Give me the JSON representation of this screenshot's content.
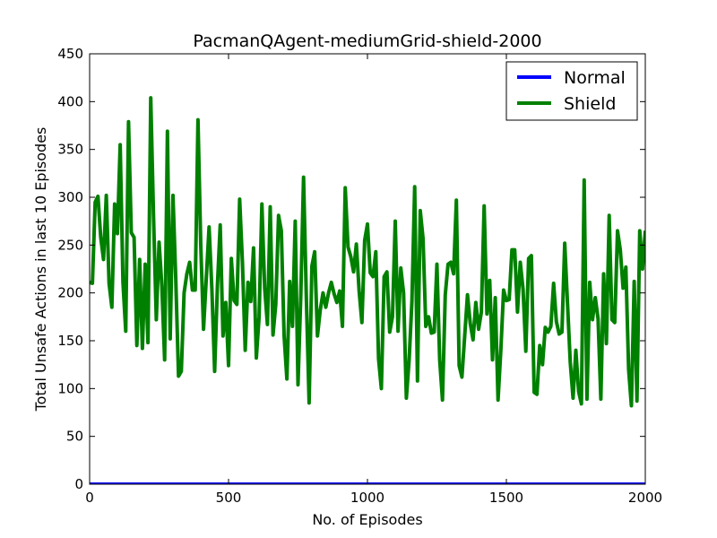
{
  "chart_data": {
    "type": "line",
    "title": "PacmanQAgent-mediumGrid-shield-2000",
    "xlabel": "No. of Episodes",
    "ylabel": "Total Unsafe Actions in last 10 Episodes",
    "xlim": [
      0,
      2000
    ],
    "ylim": [
      0,
      450
    ],
    "xticks": [
      0,
      500,
      1000,
      1500,
      2000
    ],
    "yticks": [
      0,
      50,
      100,
      150,
      200,
      250,
      300,
      350,
      400,
      450
    ],
    "grid": false,
    "legend_position": "top-right",
    "series": [
      {
        "name": "Normal",
        "color": "#0000ff",
        "x": [
          0,
          2000
        ],
        "y": [
          0,
          0
        ]
      },
      {
        "name": "Shield",
        "color": "#008000",
        "x": [
          0,
          10,
          20,
          30,
          40,
          50,
          60,
          70,
          80,
          90,
          100,
          110,
          120,
          130,
          140,
          150,
          160,
          170,
          180,
          190,
          200,
          210,
          220,
          230,
          240,
          250,
          260,
          270,
          280,
          290,
          300,
          310,
          320,
          330,
          340,
          350,
          360,
          370,
          380,
          390,
          400,
          410,
          420,
          430,
          440,
          450,
          460,
          470,
          480,
          490,
          500,
          510,
          520,
          530,
          540,
          550,
          560,
          570,
          580,
          590,
          600,
          610,
          620,
          630,
          640,
          650,
          660,
          670,
          680,
          690,
          700,
          710,
          720,
          730,
          740,
          750,
          760,
          770,
          780,
          790,
          800,
          810,
          820,
          830,
          840,
          850,
          860,
          870,
          880,
          890,
          900,
          910,
          920,
          930,
          940,
          950,
          960,
          970,
          980,
          990,
          1000,
          1010,
          1020,
          1030,
          1040,
          1050,
          1060,
          1070,
          1080,
          1090,
          1100,
          1110,
          1120,
          1130,
          1140,
          1150,
          1160,
          1170,
          1180,
          1190,
          1200,
          1210,
          1220,
          1230,
          1240,
          1250,
          1260,
          1270,
          1280,
          1290,
          1300,
          1310,
          1320,
          1330,
          1340,
          1350,
          1360,
          1370,
          1380,
          1390,
          1400,
          1410,
          1420,
          1430,
          1440,
          1450,
          1460,
          1470,
          1480,
          1490,
          1500,
          1510,
          1520,
          1530,
          1540,
          1550,
          1560,
          1570,
          1580,
          1590,
          1600,
          1610,
          1620,
          1630,
          1640,
          1650,
          1660,
          1670,
          1680,
          1690,
          1700,
          1710,
          1720,
          1730,
          1740,
          1750,
          1760,
          1770,
          1780,
          1790,
          1800,
          1810,
          1820,
          1830,
          1840,
          1850,
          1860,
          1870,
          1880,
          1890,
          1900,
          1910,
          1920,
          1930,
          1940,
          1950,
          1960,
          1970,
          1980,
          1990,
          2000
        ],
        "y": [
          211,
          210,
          295,
          301,
          258,
          235,
          302,
          210,
          185,
          293,
          262,
          355,
          211,
          160,
          379,
          263,
          258,
          145,
          235,
          142,
          230,
          148,
          404,
          280,
          172,
          253,
          207,
          130,
          369,
          152,
          302,
          215,
          113,
          118,
          200,
          220,
          232,
          203,
          203,
          381,
          250,
          162,
          216,
          269,
          204,
          118,
          208,
          271,
          155,
          190,
          124,
          236,
          192,
          188,
          298,
          232,
          140,
          211,
          191,
          247,
          132,
          175,
          293,
          205,
          167,
          290,
          156,
          188,
          281,
          265,
          155,
          110,
          212,
          165,
          275,
          104,
          197,
          321,
          195,
          85,
          228,
          243,
          155,
          182,
          200,
          185,
          200,
          211,
          199,
          190,
          202,
          165,
          310,
          248,
          238,
          222,
          251,
          202,
          169,
          255,
          272,
          221,
          217,
          243,
          131,
          100,
          217,
          222,
          159,
          175,
          275,
          160,
          226,
          200,
          90,
          130,
          191,
          311,
          108,
          286,
          257,
          165,
          175,
          158,
          159,
          230,
          130,
          88,
          198,
          230,
          232,
          220,
          297,
          124,
          112,
          155,
          198,
          168,
          151,
          190,
          162,
          180,
          291,
          178,
          213,
          130,
          195,
          88,
          140,
          203,
          192,
          193,
          245,
          245,
          180,
          232,
          204,
          139,
          236,
          239,
          96,
          94,
          145,
          125,
          164,
          159,
          165,
          210,
          170,
          157,
          159,
          252,
          189,
          127,
          90,
          140,
          97,
          84,
          318,
          89,
          211,
          172,
          195,
          173,
          89,
          220,
          147,
          281,
          172,
          169,
          265,
          245,
          205,
          227,
          120,
          82,
          212,
          87,
          265,
          225,
          265
        ]
      }
    ]
  }
}
